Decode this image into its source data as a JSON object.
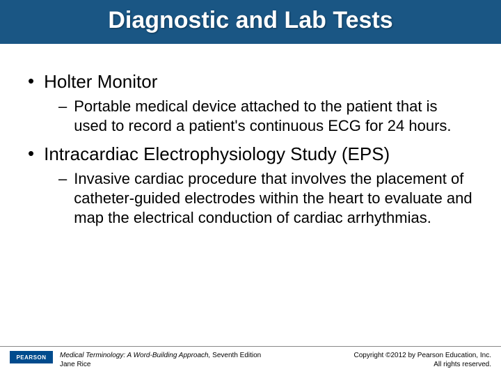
{
  "header": {
    "title": "Diagnostic and Lab Tests"
  },
  "bullets": {
    "item1": {
      "label": "Holter Monitor",
      "sub": "Portable medical device attached to the patient that is used to record a patient's continuous ECG for 24 hours."
    },
    "item2": {
      "label": "Intracardiac Electrophysiology Study (EPS)",
      "sub": "Invasive cardiac procedure that involves the placement of catheter-guided electrodes within the heart to evaluate and map the electrical conduction of cardiac arrhythmias."
    }
  },
  "footer": {
    "logo": "PEARSON",
    "book_title": "Medical Terminology: A Word-Building Approach,",
    "book_edition": " Seventh Edition",
    "author": "Jane Rice",
    "copyright_line1": "Copyright ©2012 by Pearson Education, Inc.",
    "copyright_line2": "All rights reserved."
  },
  "colors": {
    "title_bg": "#1a5684",
    "title_text": "#ffffff",
    "body_text": "#000000",
    "logo_bg": "#004b8d",
    "divider": "#888888"
  }
}
